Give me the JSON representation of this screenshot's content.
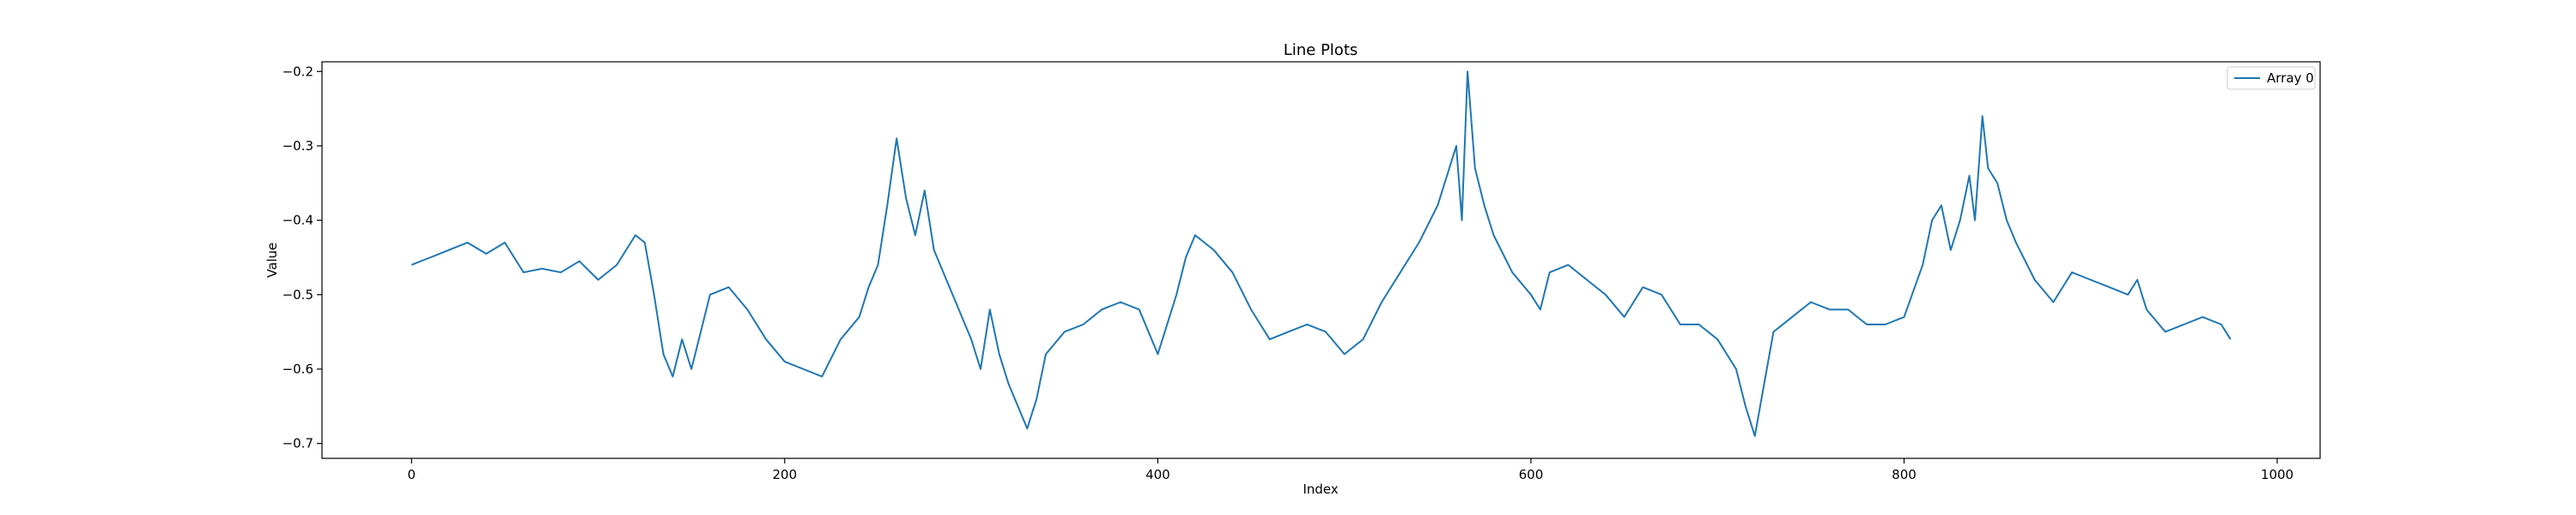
{
  "chart_data": {
    "type": "line",
    "title": "Line Plots",
    "xlabel": "Index",
    "ylabel": "Value",
    "xlim": [
      -48,
      1023
    ],
    "ylim": [
      -0.72,
      -0.187
    ],
    "xticks": [
      0,
      200,
      400,
      600,
      800,
      1000
    ],
    "yticks": [
      -0.7,
      -0.6,
      -0.5,
      -0.4,
      -0.3,
      -0.2
    ],
    "grid": false,
    "legend_position": "top-right",
    "series": [
      {
        "name": "Array 0",
        "color": "#1f77b4",
        "x": [
          0,
          10,
          20,
          30,
          40,
          50,
          60,
          70,
          80,
          90,
          100,
          110,
          120,
          125,
          130,
          135,
          140,
          145,
          150,
          155,
          160,
          170,
          180,
          190,
          200,
          210,
          220,
          230,
          240,
          245,
          250,
          255,
          260,
          265,
          270,
          275,
          280,
          290,
          300,
          305,
          310,
          315,
          320,
          325,
          330,
          335,
          340,
          350,
          360,
          370,
          380,
          390,
          400,
          410,
          415,
          420,
          430,
          440,
          450,
          460,
          470,
          480,
          490,
          500,
          510,
          520,
          530,
          540,
          550,
          555,
          560,
          563,
          566,
          570,
          575,
          580,
          590,
          600,
          605,
          610,
          620,
          630,
          640,
          650,
          660,
          670,
          680,
          690,
          700,
          710,
          715,
          720,
          725,
          730,
          740,
          750,
          760,
          770,
          780,
          790,
          800,
          810,
          815,
          820,
          825,
          830,
          835,
          838,
          842,
          845,
          850,
          855,
          860,
          870,
          880,
          890,
          900,
          910,
          920,
          925,
          930,
          940,
          950,
          960,
          970,
          975
        ],
        "y": [
          -0.46,
          -0.45,
          -0.44,
          -0.43,
          -0.445,
          -0.43,
          -0.47,
          -0.465,
          -0.47,
          -0.455,
          -0.48,
          -0.46,
          -0.42,
          -0.43,
          -0.5,
          -0.58,
          -0.61,
          -0.56,
          -0.6,
          -0.55,
          -0.5,
          -0.49,
          -0.52,
          -0.56,
          -0.59,
          -0.6,
          -0.61,
          -0.56,
          -0.53,
          -0.49,
          -0.46,
          -0.38,
          -0.29,
          -0.37,
          -0.42,
          -0.36,
          -0.44,
          -0.5,
          -0.56,
          -0.6,
          -0.52,
          -0.58,
          -0.62,
          -0.65,
          -0.68,
          -0.64,
          -0.58,
          -0.55,
          -0.54,
          -0.52,
          -0.51,
          -0.52,
          -0.58,
          -0.5,
          -0.45,
          -0.42,
          -0.44,
          -0.47,
          -0.52,
          -0.56,
          -0.55,
          -0.54,
          -0.55,
          -0.58,
          -0.56,
          -0.51,
          -0.47,
          -0.43,
          -0.38,
          -0.34,
          -0.3,
          -0.4,
          -0.2,
          -0.33,
          -0.38,
          -0.42,
          -0.47,
          -0.5,
          -0.52,
          -0.47,
          -0.46,
          -0.48,
          -0.5,
          -0.53,
          -0.49,
          -0.5,
          -0.54,
          -0.54,
          -0.56,
          -0.6,
          -0.65,
          -0.69,
          -0.62,
          -0.55,
          -0.53,
          -0.51,
          -0.52,
          -0.52,
          -0.54,
          -0.54,
          -0.53,
          -0.46,
          -0.4,
          -0.38,
          -0.44,
          -0.4,
          -0.34,
          -0.4,
          -0.26,
          -0.33,
          -0.35,
          -0.4,
          -0.43,
          -0.48,
          -0.51,
          -0.47,
          -0.48,
          -0.49,
          -0.5,
          -0.48,
          -0.52,
          -0.55,
          -0.54,
          -0.53,
          -0.54,
          -0.56
        ]
      }
    ]
  }
}
